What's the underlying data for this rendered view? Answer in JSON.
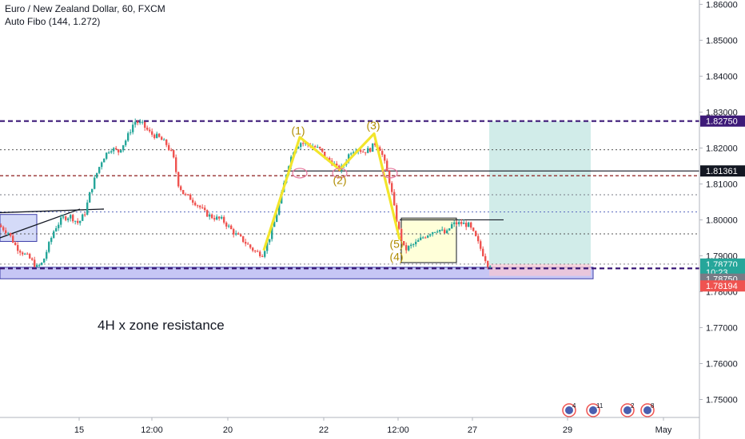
{
  "header": {
    "symbol_line": "Euro / New Zealand Dollar, 60, FXCM",
    "indicator_line": "Auto Fibo (144, 1.272)"
  },
  "annotation_text": "4H x zone resistance",
  "chart_data": {
    "type": "candlestick",
    "title": "Euro / New Zealand Dollar, 60, FXCM",
    "xlabel": "",
    "ylabel": "",
    "ylim": [
      1.745,
      1.8612
    ],
    "yticks": [
      1.75,
      1.76,
      1.77,
      1.78,
      1.79,
      1.8,
      1.81,
      1.82,
      1.83,
      1.84,
      1.85,
      1.86
    ],
    "ytick_labels": [
      "1.75000",
      "1.76000",
      "1.77000",
      "1.78000",
      "1.79000",
      "1.80000",
      "1.81000",
      "1.82000",
      "1.83000",
      "1.84000",
      "1.85000",
      "1.86000"
    ],
    "xticks": [
      {
        "label": "15",
        "slot": 99
      },
      {
        "label": "12:00",
        "slot": 190
      },
      {
        "label": "20",
        "slot": 285
      },
      {
        "label": "22",
        "slot": 405
      },
      {
        "label": "12:00",
        "slot": 498
      },
      {
        "label": "27",
        "slot": 591
      },
      {
        "label": "29",
        "slot": 710
      },
      {
        "label": "May",
        "slot": 830
      }
    ],
    "slot_range": [
      0,
      875
    ],
    "price_path": [
      [
        0,
        1.7985
      ],
      [
        12,
        1.7965
      ],
      [
        22,
        1.7925
      ],
      [
        32,
        1.7905
      ],
      [
        40,
        1.789
      ],
      [
        48,
        1.7868
      ],
      [
        55,
        1.788
      ],
      [
        62,
        1.7925
      ],
      [
        70,
        1.7975
      ],
      [
        80,
        1.8005
      ],
      [
        90,
        1.801
      ],
      [
        100,
        1.799
      ],
      [
        108,
        1.802
      ],
      [
        115,
        1.808
      ],
      [
        122,
        1.8125
      ],
      [
        130,
        1.817
      ],
      [
        140,
        1.82
      ],
      [
        150,
        1.819
      ],
      [
        160,
        1.8225
      ],
      [
        170,
        1.8275
      ],
      [
        180,
        1.8265
      ],
      [
        190,
        1.824
      ],
      [
        200,
        1.823
      ],
      [
        210,
        1.821
      ],
      [
        218,
        1.818
      ],
      [
        225,
        1.81
      ],
      [
        232,
        1.807
      ],
      [
        240,
        1.806
      ],
      [
        250,
        1.804
      ],
      [
        258,
        1.802
      ],
      [
        265,
        1.801
      ],
      [
        272,
        1.8005
      ],
      [
        280,
        1.8
      ],
      [
        288,
        1.798
      ],
      [
        296,
        1.796
      ],
      [
        305,
        1.7945
      ],
      [
        314,
        1.7925
      ],
      [
        322,
        1.791
      ],
      [
        330,
        1.7905
      ],
      [
        338,
        1.7945
      ],
      [
        346,
        1.8
      ],
      [
        354,
        1.807
      ],
      [
        362,
        1.815
      ],
      [
        370,
        1.82
      ],
      [
        378,
        1.8215
      ],
      [
        386,
        1.821
      ],
      [
        394,
        1.8205
      ],
      [
        402,
        1.8195
      ],
      [
        410,
        1.817
      ],
      [
        418,
        1.816
      ],
      [
        424,
        1.814
      ],
      [
        430,
        1.8145
      ],
      [
        440,
        1.819
      ],
      [
        448,
        1.82
      ],
      [
        456,
        1.819
      ],
      [
        464,
        1.8195
      ],
      [
        472,
        1.8215
      ],
      [
        478,
        1.8195
      ],
      [
        484,
        1.815
      ],
      [
        490,
        1.81
      ],
      [
        496,
        1.802
      ],
      [
        502,
        1.796
      ],
      [
        508,
        1.7915
      ],
      [
        514,
        1.7925
      ],
      [
        522,
        1.7935
      ],
      [
        530,
        1.795
      ],
      [
        540,
        1.7965
      ],
      [
        550,
        1.7975
      ],
      [
        560,
        1.796
      ],
      [
        566,
        1.7985
      ],
      [
        572,
        1.799
      ],
      [
        580,
        1.799
      ],
      [
        588,
        1.7985
      ],
      [
        596,
        1.7955
      ],
      [
        604,
        1.7915
      ],
      [
        612,
        1.7877
      ]
    ],
    "series": [
      {
        "name": "",
        "color": "#26a69a"
      },
      {
        "name": "",
        "color": "#ef5350"
      }
    ],
    "horizontal_levels": [
      {
        "price": 1.8275,
        "color": "#3d1a78",
        "style": "dashed-thick"
      },
      {
        "price": 1.7865,
        "color": "#3d1a78",
        "style": "dashed-thick"
      },
      {
        "price": 1.8195,
        "color": "#555555",
        "style": "dotted"
      },
      {
        "price": 1.8123,
        "color": "#8b1a1a",
        "style": "dashed"
      },
      {
        "price": 1.807,
        "color": "#787b86",
        "style": "dotted"
      },
      {
        "price": 1.8022,
        "color": "#5b6bbf",
        "style": "dotted"
      },
      {
        "price": 1.7961,
        "color": "#555555",
        "style": "dotted"
      },
      {
        "price": 1.7877,
        "color": "#888888",
        "style": "dotted"
      }
    ],
    "resistance_line": {
      "price": 1.81361,
      "from_slot": 355,
      "to_slot": 875,
      "color": "#131722"
    },
    "box_line": {
      "price": 1.8,
      "from_slot": 500,
      "to_slot": 630,
      "color": "#131722"
    },
    "trend_line": {
      "from": [
        0,
        1.802
      ],
      "to": [
        130,
        1.803
      ],
      "color": "#131722"
    },
    "trend_line2": {
      "from": [
        0,
        1.795
      ],
      "to": [
        100,
        1.803
      ],
      "color": "#131722"
    },
    "zones": [
      {
        "name": "4h-zone",
        "slot_from": 0,
        "slot_to": 742,
        "price_top": 1.7868,
        "price_bottom": 1.7836,
        "fill": "#b3b3f2",
        "stroke": "#3d3da8"
      },
      {
        "name": "left-box",
        "slot_from": 0,
        "slot_to": 46,
        "price_top": 1.8015,
        "price_bottom": 1.794,
        "fill": "#c6cdf5",
        "stroke": "#3d3da8"
      },
      {
        "name": "consolidation-box",
        "slot_from": 502,
        "slot_to": 571,
        "price_top": 1.8005,
        "price_bottom": 1.7881,
        "fill": "#ffffcc",
        "stroke": "#131722"
      },
      {
        "name": "target-zone",
        "slot_from": 612,
        "slot_to": 739,
        "price_top": 1.8275,
        "price_bottom": 1.7877,
        "fill": "#b2dfdb",
        "stroke": "none"
      },
      {
        "name": "stop-zone",
        "slot_from": 612,
        "slot_to": 739,
        "price_top": 1.7877,
        "price_bottom": 1.7844,
        "fill": "#f4c6d3",
        "stroke": "none"
      }
    ],
    "wave_path": [
      [
        330,
        1.7915
      ],
      [
        375,
        1.823
      ],
      [
        425,
        1.814
      ],
      [
        468,
        1.824
      ],
      [
        500,
        1.7945
      ]
    ],
    "wave_labels": [
      {
        "text": "(1)",
        "slot": 373,
        "price": 1.8238
      },
      {
        "text": "(2)",
        "slot": 425,
        "price": 1.81
      },
      {
        "text": "(3)",
        "slot": 467,
        "price": 1.8252
      },
      {
        "text": "(5)",
        "slot": 496,
        "price": 1.7922
      },
      {
        "text": "(4)",
        "slot": 496,
        "price": 1.7887
      }
    ],
    "wave_color": "#f2e52b",
    "label_color": "#b08c00",
    "pivot_circles": [
      {
        "slot": 375,
        "price": 1.813
      },
      {
        "slot": 425,
        "price": 1.813
      },
      {
        "slot": 488,
        "price": 1.813
      }
    ],
    "price_labels": [
      {
        "text": "1.82750",
        "price": 1.8275,
        "bg": "#3d1a78",
        "fg": "#ffffff"
      },
      {
        "text": "1.81361",
        "price": 1.81361,
        "bg": "#131722",
        "fg": "#ffffff"
      },
      {
        "text": "1.78770",
        "price": 1.7877,
        "bg": "#26a69a",
        "fg": "#ffffff"
      },
      {
        "text": "10:23",
        "price": 1.78545,
        "bg": "#26a69a",
        "fg": "#ffffff"
      },
      {
        "text": "1.78750",
        "price": 1.7835,
        "bg": "#787b86",
        "fg": "#ffffff"
      },
      {
        "text": "1.78194",
        "price": 1.78194,
        "bg": "#ef5350",
        "fg": "#ffffff",
        "shift": 1.5
      }
    ],
    "event_markers": [
      {
        "slot": 712,
        "text": "4"
      },
      {
        "slot": 742,
        "text": "11"
      },
      {
        "slot": 785,
        "text": "2"
      },
      {
        "slot": 810,
        "text": "8"
      }
    ]
  }
}
